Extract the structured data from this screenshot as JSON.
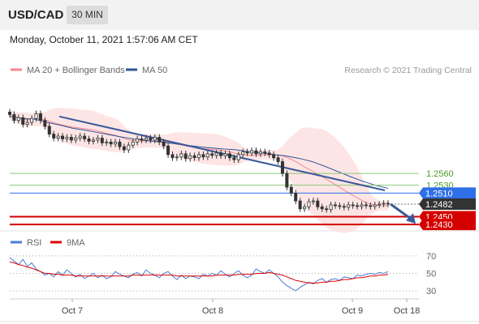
{
  "header": {
    "symbol": "USD/CAD",
    "timeframe": "30 MIN"
  },
  "datetime": "Monday, October 11, 2021 1:57:06 AM CET",
  "colors": {
    "up_candle": "#ffffff",
    "down_candle": "#333333",
    "bollinger_fill": "#fde0e0",
    "ma20": "#f08a8a",
    "ma50": "#2e5597",
    "trend_line": "#3a5a9a",
    "green_level": "#8dc87a",
    "blue_level": "#2f6fe8",
    "red_level": "#d40000",
    "price_tag": "#333333",
    "rsi": "#4a7bd6",
    "rsi_ma": "#e00000"
  },
  "chart_data": [
    {
      "type": "candlestick",
      "legend": [
        {
          "name": "MA 20 + Bollinger Bands",
          "color": "#f08a8a"
        },
        {
          "name": "MA 50",
          "color": "#2e5597"
        }
      ],
      "source": "Research © 2021 Trading Central",
      "ylim": [
        1.2418,
        1.2785
      ],
      "x_ticks": [
        "Oct 7",
        "Oct 8",
        "Oct 9",
        "Oct 18"
      ],
      "levels": [
        {
          "label": "1.2560",
          "value": 1.256,
          "kind": "resistance"
        },
        {
          "label": "1.2530",
          "value": 1.253,
          "kind": "resistance"
        },
        {
          "label": "1.2510",
          "value": 1.251,
          "kind": "pivot"
        },
        {
          "label": "1.2482",
          "value": 1.2482,
          "kind": "last"
        },
        {
          "label": "1.2450",
          "value": 1.245,
          "kind": "support"
        },
        {
          "label": "1.2430",
          "value": 1.243,
          "kind": "support"
        }
      ],
      "close_series": [
        1.271,
        1.2695,
        1.2702,
        1.2685,
        1.269,
        1.27,
        1.2712,
        1.2695,
        1.268,
        1.266,
        1.265,
        1.2655,
        1.2648,
        1.2652,
        1.2645,
        1.265,
        1.2655,
        1.2648,
        1.2642,
        1.2645,
        1.265,
        1.2638,
        1.264,
        1.2635,
        1.264,
        1.2628,
        1.262,
        1.2632,
        1.264,
        1.2648,
        1.2645,
        1.265,
        1.2645,
        1.2652,
        1.264,
        1.263,
        1.2608,
        1.26,
        1.2602,
        1.261,
        1.2598,
        1.2605,
        1.26,
        1.2608,
        1.2602,
        1.261,
        1.2606,
        1.2612,
        1.2605,
        1.261,
        1.26,
        1.2595,
        1.2608,
        1.2615,
        1.2612,
        1.2618,
        1.261,
        1.2615,
        1.2612,
        1.2608,
        1.26,
        1.259,
        1.256,
        1.2525,
        1.251,
        1.249,
        1.247,
        1.2475,
        1.2488,
        1.249,
        1.2475,
        1.247,
        1.2468,
        1.248,
        1.2478,
        1.2476,
        1.2474,
        1.248,
        1.2478,
        1.2476,
        1.248,
        1.2478,
        1.2476,
        1.248,
        1.2482,
        1.2484,
        1.2482
      ],
      "ma50_series": [
        1.2705,
        1.27,
        1.2698,
        1.269,
        1.2683,
        1.2675,
        1.267,
        1.2664,
        1.2658,
        1.2652,
        1.2647,
        1.2643,
        1.264,
        1.2636,
        1.2632,
        1.2628,
        1.2625,
        1.2622,
        1.262,
        1.2615,
        1.2612,
        1.2608,
        1.2604,
        1.2598,
        1.259,
        1.2578,
        1.2565,
        1.2552,
        1.254,
        1.253,
        1.2522
      ],
      "forecast_arrow": {
        "from": 1.2482,
        "to": 1.2432
      }
    },
    {
      "type": "line",
      "legend": [
        {
          "name": "RSI",
          "color": "#4a7bd6"
        },
        {
          "name": "9MA",
          "color": "#e00000"
        }
      ],
      "ylim": [
        20,
        80
      ],
      "levels": [
        70,
        50,
        30
      ],
      "level_labels": [
        "70",
        "50",
        "30"
      ],
      "rsi_series": [
        68,
        64,
        60,
        66,
        58,
        62,
        55,
        52,
        48,
        50,
        46,
        52,
        48,
        54,
        50,
        46,
        49,
        44,
        47,
        50,
        45,
        48,
        44,
        46,
        52,
        49,
        47,
        45,
        49,
        51,
        47,
        54,
        50,
        48,
        45,
        50,
        52,
        47,
        43,
        48,
        44,
        47,
        46,
        44,
        49,
        47,
        50,
        48,
        53,
        49,
        46,
        50,
        53,
        48,
        45,
        48,
        55,
        52,
        50,
        54,
        50,
        46,
        40,
        36,
        33,
        30,
        34,
        37,
        40,
        38,
        42,
        44,
        40,
        43,
        44,
        42,
        46,
        45,
        44,
        48,
        47,
        49,
        50,
        49,
        51,
        50,
        52
      ],
      "rsi_ma_series": [
        63,
        62,
        60,
        59,
        57,
        56,
        54,
        52,
        50,
        50,
        49,
        49,
        48,
        48,
        48,
        47,
        47,
        47,
        47,
        47,
        47,
        47,
        47,
        47,
        47,
        47,
        47,
        47,
        48,
        48,
        48,
        48,
        48,
        48,
        48,
        48,
        48,
        48,
        47,
        47,
        47,
        47,
        47,
        47,
        47,
        47,
        47,
        48,
        48,
        48,
        48,
        48,
        49,
        49,
        49,
        49,
        50,
        50,
        50,
        51,
        50,
        49,
        48,
        46,
        44,
        42,
        41,
        40,
        39,
        39,
        39,
        40,
        40,
        41,
        41,
        42,
        43,
        43,
        44,
        45,
        45,
        46,
        47,
        47,
        48,
        48,
        49
      ]
    }
  ]
}
